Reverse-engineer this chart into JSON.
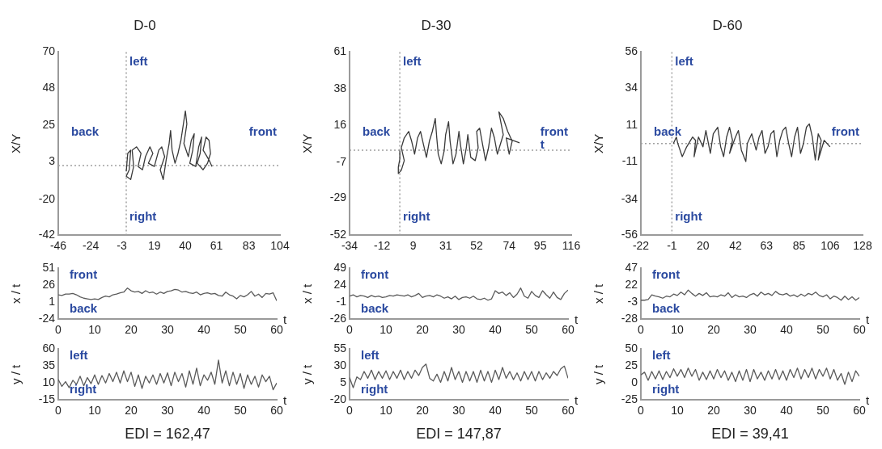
{
  "chart_data": [
    {
      "type": "line",
      "title": "D-0",
      "ylabel": "X/Y",
      "color": "#3a3a3a",
      "xlim": [
        -46,
        104
      ],
      "xticks": [
        -46,
        -24,
        -3,
        19,
        40,
        61,
        83,
        104
      ],
      "ylim": [
        -42,
        70
      ],
      "yticks": [
        -42,
        -20,
        3,
        25,
        48,
        70
      ],
      "x": [
        0,
        1,
        3,
        2,
        0,
        3,
        5,
        4,
        7,
        10,
        8,
        11,
        13,
        16,
        18,
        15,
        19,
        22,
        24,
        26,
        23,
        25,
        27,
        29,
        30,
        31,
        33,
        35,
        37,
        39,
        40,
        41,
        39,
        42,
        44,
        46,
        45,
        43,
        47,
        49,
        51,
        50,
        48,
        52,
        55,
        57,
        56,
        54,
        52,
        56,
        58
      ],
      "values": [
        -3,
        8,
        10,
        -2,
        -6,
        -8,
        0,
        10,
        12,
        8,
        0,
        -2,
        6,
        12,
        8,
        2,
        0,
        10,
        12,
        6,
        -2,
        -8,
        4,
        14,
        22,
        10,
        2,
        8,
        16,
        28,
        34,
        26,
        14,
        6,
        16,
        20,
        10,
        2,
        0,
        12,
        18,
        8,
        2,
        -2,
        2,
        8,
        16,
        18,
        10,
        4,
        0
      ],
      "ref_lines": [
        {
          "axis": "x",
          "value": 0,
          "color": "#a0a0a0",
          "line_style": "dotted"
        },
        {
          "axis": "y",
          "value": 0.6,
          "color": "#a0a0a0",
          "line_style": "dotted"
        }
      ],
      "annotations": [
        "left",
        "right",
        "back",
        "front"
      ]
    },
    {
      "type": "line",
      "title": "D-30",
      "ylabel": "X/Y",
      "color": "#3a3a3a",
      "xlim": [
        -34,
        116
      ],
      "xticks": [
        -34,
        -12,
        9,
        31,
        52,
        74,
        95,
        116
      ],
      "ylim": [
        -52,
        61
      ],
      "yticks": [
        -52,
        -29,
        -7,
        16,
        38,
        61
      ],
      "x": [
        0,
        0,
        -1,
        -1,
        1,
        3,
        1,
        3,
        6,
        8,
        10,
        12,
        14,
        16,
        18,
        20,
        22,
        24,
        25,
        26,
        28,
        30,
        31,
        33,
        34,
        36,
        38,
        40,
        41,
        43,
        45,
        46,
        48,
        51,
        53,
        52,
        54,
        56,
        58,
        60,
        62,
        64,
        66,
        68,
        70,
        67,
        70,
        73,
        76,
        74,
        72,
        78,
        81
      ],
      "values": [
        0,
        -5,
        -10,
        -14,
        -12,
        -6,
        2,
        8,
        12,
        6,
        -2,
        8,
        12,
        4,
        -4,
        6,
        12,
        20,
        8,
        -2,
        -8,
        0,
        10,
        18,
        6,
        -8,
        -2,
        12,
        4,
        -8,
        2,
        10,
        -4,
        -6,
        2,
        12,
        14,
        4,
        -6,
        2,
        14,
        8,
        -2,
        4,
        10,
        24,
        20,
        12,
        6,
        -2,
        8,
        6,
        5
      ],
      "ref_lines": [
        {
          "axis": "x",
          "value": 0,
          "color": "#a0a0a0",
          "line_style": "dotted"
        },
        {
          "axis": "y",
          "value": 0.4,
          "color": "#a0a0a0",
          "line_style": "dotted"
        }
      ],
      "annotations": [
        "left",
        "right",
        "back",
        "front",
        "t"
      ]
    },
    {
      "type": "line",
      "title": "D-60",
      "ylabel": "X/Y",
      "color": "#3a3a3a",
      "xlim": [
        -22,
        128
      ],
      "xticks": [
        -22,
        -1,
        20,
        42,
        63,
        85,
        106,
        128
      ],
      "ylim": [
        -56,
        56
      ],
      "yticks": [
        -56,
        -34,
        -11,
        11,
        34,
        56
      ],
      "x": [
        0,
        2,
        3,
        6,
        9,
        13,
        15,
        14,
        17,
        20,
        22,
        25,
        27,
        30,
        32,
        34,
        36,
        38,
        40,
        38,
        42,
        44,
        46,
        49,
        50,
        53,
        56,
        58,
        60,
        62,
        64,
        66,
        68,
        70,
        72,
        74,
        76,
        78,
        80,
        82,
        84,
        86,
        88,
        90,
        92,
        94,
        96,
        98,
        100,
        98,
        102,
        106
      ],
      "values": [
        0,
        4,
        0,
        -8,
        -2,
        4,
        2,
        -8,
        4,
        -2,
        8,
        -6,
        6,
        10,
        -2,
        -8,
        4,
        10,
        2,
        -6,
        4,
        8,
        -4,
        -11,
        0,
        6,
        -4,
        4,
        8,
        -6,
        -2,
        6,
        8,
        -8,
        2,
        8,
        10,
        0,
        -8,
        4,
        10,
        -6,
        0,
        10,
        12,
        4,
        -10,
        6,
        2,
        -10,
        2,
        -2
      ],
      "ref_lines": [
        {
          "axis": "x",
          "value": -1,
          "color": "#a0a0a0",
          "line_style": "dotted"
        },
        {
          "axis": "y",
          "value": 0,
          "color": "#a0a0a0",
          "line_style": "dotted"
        }
      ],
      "annotations": [
        "left",
        "right",
        "back",
        "front"
      ]
    },
    {
      "type": "line",
      "xlabel": "t",
      "ylabel": "x / t",
      "color": "#5a5a5a",
      "xlim": [
        0,
        60
      ],
      "xticks": [
        0,
        10,
        20,
        30,
        40,
        50,
        60
      ],
      "ylim": [
        -24,
        51
      ],
      "yticks": [
        -24,
        1,
        26,
        51
      ],
      "x": [
        0,
        1,
        2,
        3,
        4,
        5,
        6,
        7,
        8,
        9,
        10,
        11,
        12,
        13,
        14,
        15,
        16,
        17,
        18,
        19,
        20,
        21,
        22,
        23,
        24,
        25,
        26,
        27,
        28,
        29,
        30,
        31,
        32,
        33,
        34,
        35,
        36,
        37,
        38,
        39,
        40,
        41,
        42,
        43,
        44,
        45,
        46,
        47,
        48,
        49,
        50,
        51,
        52,
        53,
        54,
        55,
        56,
        57,
        58,
        59,
        60
      ],
      "values": [
        12,
        11,
        13,
        13,
        14,
        12,
        9,
        7,
        6,
        5,
        6,
        5,
        8,
        10,
        9,
        12,
        13,
        15,
        16,
        22,
        18,
        16,
        17,
        14,
        18,
        15,
        16,
        13,
        16,
        14,
        17,
        18,
        20,
        19,
        16,
        17,
        15,
        14,
        16,
        12,
        14,
        15,
        13,
        14,
        11,
        10,
        16,
        12,
        10,
        6,
        11,
        9,
        12,
        17,
        10,
        13,
        8,
        14,
        13,
        15,
        3
      ],
      "annotations": [
        "front",
        "back"
      ]
    },
    {
      "type": "line",
      "xlabel": "t",
      "ylabel": "x / t",
      "color": "#5a5a5a",
      "xlim": [
        0,
        60
      ],
      "xticks": [
        0,
        10,
        20,
        30,
        40,
        50,
        60
      ],
      "ylim": [
        -26,
        49
      ],
      "yticks": [
        -26,
        -1,
        24,
        49
      ],
      "x": [
        0,
        1,
        2,
        3,
        4,
        5,
        6,
        7,
        8,
        9,
        10,
        11,
        12,
        13,
        14,
        15,
        16,
        17,
        18,
        19,
        20,
        21,
        22,
        23,
        24,
        25,
        26,
        27,
        28,
        29,
        30,
        31,
        32,
        33,
        34,
        35,
        36,
        37,
        38,
        39,
        40,
        41,
        42,
        43,
        44,
        45,
        46,
        47,
        48,
        49,
        50,
        51,
        52,
        53,
        54,
        55,
        56,
        57,
        58,
        59,
        60
      ],
      "values": [
        8,
        10,
        7,
        9,
        8,
        6,
        9,
        7,
        8,
        6,
        7,
        9,
        8,
        10,
        9,
        8,
        10,
        7,
        9,
        12,
        6,
        8,
        9,
        7,
        10,
        8,
        5,
        7,
        4,
        8,
        3,
        6,
        7,
        5,
        8,
        4,
        3,
        5,
        2,
        4,
        16,
        12,
        14,
        9,
        13,
        6,
        11,
        20,
        8,
        5,
        15,
        9,
        6,
        16,
        10,
        5,
        14,
        6,
        3,
        12,
        17
      ],
      "annotations": [
        "front",
        "back"
      ]
    },
    {
      "type": "line",
      "xlabel": "t",
      "ylabel": "x / t",
      "color": "#5a5a5a",
      "xlim": [
        0,
        60
      ],
      "xticks": [
        0,
        10,
        20,
        30,
        40,
        50,
        60
      ],
      "ylim": [
        -28,
        47
      ],
      "yticks": [
        -28,
        -3,
        22,
        47
      ],
      "x": [
        0,
        1,
        2,
        3,
        4,
        5,
        6,
        7,
        8,
        9,
        10,
        11,
        12,
        13,
        14,
        15,
        16,
        17,
        18,
        19,
        20,
        21,
        22,
        23,
        24,
        25,
        26,
        27,
        28,
        29,
        30,
        31,
        32,
        33,
        34,
        35,
        36,
        37,
        38,
        39,
        40,
        41,
        42,
        43,
        44,
        45,
        46,
        47,
        48,
        49,
        50,
        51,
        52,
        53,
        54,
        55,
        56,
        57,
        58,
        59,
        60
      ],
      "values": [
        0,
        0,
        1,
        8,
        6,
        5,
        3,
        6,
        5,
        9,
        7,
        12,
        8,
        15,
        10,
        6,
        10,
        7,
        11,
        5,
        6,
        5,
        8,
        6,
        11,
        4,
        8,
        5,
        6,
        4,
        8,
        10,
        6,
        12,
        8,
        10,
        7,
        13,
        9,
        8,
        10,
        6,
        8,
        5,
        9,
        6,
        10,
        8,
        12,
        7,
        5,
        8,
        2,
        6,
        4,
        0,
        6,
        1,
        5,
        0,
        4
      ],
      "annotations": [
        "front",
        "back"
      ]
    },
    {
      "type": "line",
      "xlabel": "t",
      "ylabel": "y / t",
      "color": "#5a5a5a",
      "xlim": [
        0,
        60
      ],
      "xticks": [
        0,
        10,
        20,
        30,
        40,
        50,
        60
      ],
      "ylim": [
        -15,
        60
      ],
      "yticks": [
        -15,
        10,
        35,
        60
      ],
      "x": [
        0,
        1,
        2,
        3,
        4,
        5,
        6,
        7,
        8,
        9,
        10,
        11,
        12,
        13,
        14,
        15,
        16,
        17,
        18,
        19,
        20,
        21,
        22,
        23,
        24,
        25,
        26,
        27,
        28,
        29,
        30,
        31,
        32,
        33,
        34,
        35,
        36,
        37,
        38,
        39,
        40,
        41,
        42,
        43,
        44,
        45,
        46,
        47,
        48,
        49,
        50,
        51,
        52,
        53,
        54,
        55,
        56,
        57,
        58,
        59,
        60
      ],
      "values": [
        15,
        5,
        12,
        3,
        14,
        8,
        20,
        6,
        18,
        9,
        22,
        8,
        21,
        10,
        24,
        12,
        26,
        10,
        28,
        12,
        26,
        5,
        22,
        2,
        20,
        10,
        22,
        8,
        24,
        10,
        25,
        6,
        26,
        12,
        24,
        4,
        28,
        8,
        32,
        6,
        22,
        14,
        26,
        8,
        44,
        10,
        28,
        6,
        26,
        8,
        24,
        2,
        22,
        8,
        20,
        4,
        22,
        12,
        20,
        0,
        10
      ],
      "annotations": [
        "left",
        "right",
        "EDI = 162,47"
      ]
    },
    {
      "type": "line",
      "xlabel": "t",
      "ylabel": "y / t",
      "color": "#5a5a5a",
      "xlim": [
        0,
        60
      ],
      "xticks": [
        0,
        10,
        20,
        30,
        40,
        50,
        60
      ],
      "ylim": [
        -20,
        55
      ],
      "yticks": [
        -20,
        5,
        30,
        55
      ],
      "x": [
        0,
        1,
        2,
        3,
        4,
        5,
        6,
        7,
        8,
        9,
        10,
        11,
        12,
        13,
        14,
        15,
        16,
        17,
        18,
        19,
        20,
        21,
        22,
        23,
        24,
        25,
        26,
        27,
        28,
        29,
        30,
        31,
        32,
        33,
        34,
        35,
        36,
        37,
        38,
        39,
        40,
        41,
        42,
        43,
        44,
        45,
        46,
        47,
        48,
        49,
        50,
        51,
        52,
        53,
        54,
        55,
        56,
        57,
        58,
        59,
        60
      ],
      "values": [
        13,
        -2,
        14,
        10,
        22,
        12,
        24,
        10,
        22,
        12,
        23,
        10,
        22,
        12,
        24,
        10,
        22,
        12,
        24,
        16,
        28,
        33,
        12,
        8,
        18,
        6,
        22,
        8,
        28,
        10,
        22,
        6,
        22,
        8,
        22,
        6,
        24,
        8,
        22,
        6,
        24,
        10,
        28,
        12,
        22,
        10,
        20,
        8,
        22,
        10,
        22,
        8,
        22,
        10,
        20,
        12,
        22,
        16,
        26,
        30,
        12
      ],
      "annotations": [
        "left",
        "right",
        "EDI = 147,87"
      ]
    },
    {
      "type": "line",
      "xlabel": "t",
      "ylabel": "y / t",
      "color": "#5a5a5a",
      "xlim": [
        0,
        60
      ],
      "xticks": [
        0,
        10,
        20,
        30,
        40,
        50,
        60
      ],
      "ylim": [
        -25,
        50
      ],
      "yticks": [
        -25,
        0,
        25,
        50
      ],
      "x": [
        0,
        1,
        2,
        3,
        4,
        5,
        6,
        7,
        8,
        9,
        10,
        11,
        12,
        13,
        14,
        15,
        16,
        17,
        18,
        19,
        20,
        21,
        22,
        23,
        24,
        25,
        26,
        27,
        28,
        29,
        30,
        31,
        32,
        33,
        34,
        35,
        36,
        37,
        38,
        39,
        40,
        41,
        42,
        43,
        44,
        45,
        46,
        47,
        48,
        49,
        50,
        51,
        52,
        53,
        54,
        55,
        56,
        57,
        58,
        59,
        60
      ],
      "values": [
        12,
        16,
        4,
        17,
        6,
        18,
        5,
        17,
        8,
        21,
        10,
        20,
        8,
        22,
        10,
        20,
        4,
        16,
        5,
        18,
        6,
        20,
        8,
        18,
        4,
        16,
        2,
        18,
        4,
        20,
        2,
        20,
        6,
        16,
        4,
        18,
        6,
        20,
        5,
        18,
        4,
        20,
        8,
        22,
        6,
        20,
        8,
        22,
        6,
        20,
        10,
        22,
        6,
        20,
        4,
        14,
        -2,
        16,
        2,
        18,
        10
      ],
      "annotations": [
        "left",
        "right",
        "EDI = 39,41"
      ]
    }
  ]
}
